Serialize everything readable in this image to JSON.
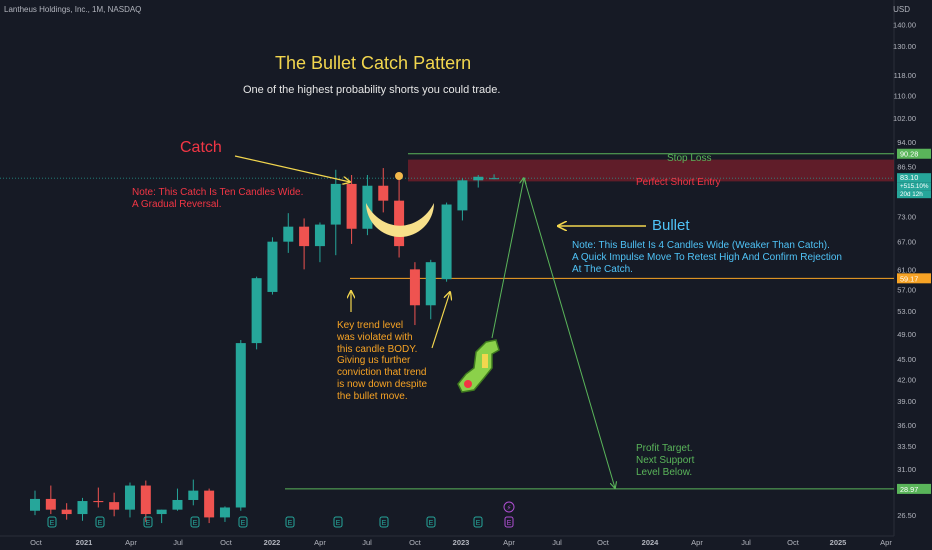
{
  "header": {
    "symbol": "Lantheus Holdings, Inc., 1M, NASDAQ",
    "currency": "USD"
  },
  "annotations": {
    "title": "The Bullet Catch Pattern",
    "subtitle": "One of the highest probability shorts you could trade.",
    "catch_label": "Catch",
    "catch_note": "Note: This Catch Is Ten Candles Wide.\nA Gradual Reversal.",
    "bullet_label": "Bullet",
    "bullet_note": "Note:  This Bullet Is 4 Candles Wide (Weaker Than Catch).\nA Quick Impulse Move To Retest High And Confirm Rejection\nAt The Catch.",
    "key_note": "Key trend level\nwas violated with\nthis candle BODY.\nGiving us further\nconviction that trend\nis now down despite\nthe bullet move.",
    "stop_loss": "Stop Loss",
    "short_entry": "Perfect Short Entry",
    "profit_target": "Profit Target.\nNext Support\nLevel Below."
  },
  "colors": {
    "background": "#161a25",
    "up": "#26a69a",
    "down": "#ef5350",
    "green_line": "#5ab55a",
    "orange_line": "#f7a325",
    "short_zone": "#7a1f2b",
    "catch_arc": "#f7e08a",
    "arrow_yellow": "#f2d64e",
    "axis_text": "#b2b5be"
  },
  "chart_data": {
    "type": "candlestick",
    "interval": "1M",
    "y_scale": "log",
    "ylim": [
      25.2,
      148
    ],
    "y_ticks": [
      26.5,
      29.0,
      31.0,
      33.5,
      36.0,
      39.0,
      42.0,
      45.0,
      49.0,
      53.0,
      57.0,
      61.0,
      67.0,
      73.0,
      80.0,
      86.5,
      94.0,
      102.0,
      110.0,
      118.0,
      130.0,
      140.0
    ],
    "x_ticks": [
      "Oct",
      "2021",
      "Apr",
      "Jul",
      "Oct",
      "2022",
      "Apr",
      "Jul",
      "Oct",
      "2023",
      "Apr",
      "Jul",
      "Oct",
      "2024",
      "Apr",
      "Jul",
      "Oct",
      "2025",
      "Apr"
    ],
    "x_tick_bold": [
      "2021",
      "2022",
      "2023",
      "2024",
      "2025"
    ],
    "candles": [
      {
        "month": "2020-11",
        "o": 26.9,
        "h": 28.8,
        "l": 26.5,
        "c": 28.0
      },
      {
        "month": "2020-12",
        "o": 28.0,
        "h": 29.3,
        "l": 26.6,
        "c": 27.0
      },
      {
        "month": "2021-01",
        "o": 27.0,
        "h": 27.6,
        "l": 26.1,
        "c": 26.6
      },
      {
        "month": "2021-02",
        "o": 26.6,
        "h": 28.1,
        "l": 26.0,
        "c": 27.8
      },
      {
        "month": "2021-03",
        "o": 27.8,
        "h": 29.1,
        "l": 27.2,
        "c": 27.7
      },
      {
        "month": "2021-04",
        "o": 27.7,
        "h": 28.6,
        "l": 26.4,
        "c": 27.0
      },
      {
        "month": "2021-05",
        "o": 27.0,
        "h": 29.6,
        "l": 26.3,
        "c": 29.3
      },
      {
        "month": "2021-06",
        "o": 29.3,
        "h": 29.8,
        "l": 25.9,
        "c": 26.6
      },
      {
        "month": "2021-07",
        "o": 26.6,
        "h": 27.0,
        "l": 25.8,
        "c": 27.0
      },
      {
        "month": "2021-08",
        "o": 27.0,
        "h": 29.0,
        "l": 26.9,
        "c": 27.9
      },
      {
        "month": "2021-09",
        "o": 27.9,
        "h": 29.9,
        "l": 27.4,
        "c": 28.8
      },
      {
        "month": "2021-10",
        "o": 28.8,
        "h": 29.0,
        "l": 25.8,
        "c": 26.3
      },
      {
        "month": "2021-11",
        "o": 26.3,
        "h": 27.3,
        "l": 25.9,
        "c": 27.2
      },
      {
        "month": "2021-12",
        "o": 27.2,
        "h": 48.0,
        "l": 26.9,
        "c": 47.5
      },
      {
        "month": "2022-01",
        "o": 47.5,
        "h": 59.5,
        "l": 46.5,
        "c": 59.2
      },
      {
        "month": "2022-02",
        "o": 56.5,
        "h": 68.0,
        "l": 56.0,
        "c": 67.0
      },
      {
        "month": "2022-03",
        "o": 67.0,
        "h": 73.8,
        "l": 64.5,
        "c": 70.5
      },
      {
        "month": "2022-04",
        "o": 70.5,
        "h": 72.5,
        "l": 61.0,
        "c": 66.0
      },
      {
        "month": "2022-05",
        "o": 66.0,
        "h": 71.5,
        "l": 62.5,
        "c": 71.0
      },
      {
        "month": "2022-06",
        "o": 71.0,
        "h": 85.5,
        "l": 64.0,
        "c": 81.5
      },
      {
        "month": "2022-07",
        "o": 81.5,
        "h": 84.0,
        "l": 66.5,
        "c": 70.0
      },
      {
        "month": "2022-08",
        "o": 70.0,
        "h": 84.0,
        "l": 68.5,
        "c": 81.0
      },
      {
        "month": "2022-09",
        "o": 81.0,
        "h": 86.0,
        "l": 74.0,
        "c": 77.0
      },
      {
        "month": "2022-10",
        "o": 77.0,
        "h": 83.0,
        "l": 63.5,
        "c": 66.0
      },
      {
        "month": "2022-11",
        "o": 61.0,
        "h": 62.5,
        "l": 50.5,
        "c": 54.0
      },
      {
        "month": "2022-12",
        "o": 54.0,
        "h": 63.0,
        "l": 51.5,
        "c": 62.5
      },
      {
        "month": "2023-01",
        "o": 59.0,
        "h": 76.5,
        "l": 58.5,
        "c": 76.0
      },
      {
        "month": "2023-02",
        "o": 74.5,
        "h": 83.0,
        "l": 72.0,
        "c": 82.5
      },
      {
        "month": "2023-03",
        "o": 82.5,
        "h": 84.0,
        "l": 80.5,
        "c": 83.5
      },
      {
        "month": "2023-04",
        "o": 83.0,
        "h": 84.2,
        "l": 82.8,
        "c": 83.1
      }
    ],
    "levels": {
      "stop_loss": 90.28,
      "key_trend": 59.17,
      "profit_target": 28.97,
      "short_zone": [
        82.2,
        88.5
      ]
    },
    "price_badges": [
      {
        "value": "90.28",
        "color": "#5ab55a"
      },
      {
        "value": "83.10",
        "color": "#26a69a"
      },
      {
        "value": "+515.10%",
        "color": "#26a69a"
      },
      {
        "value": "20d 12h",
        "color": "#26a69a"
      },
      {
        "value": "59.17",
        "color": "#f7a325"
      },
      {
        "value": "28.97",
        "color": "#5ab55a"
      }
    ],
    "events": [
      "E",
      "E",
      "E",
      "E",
      "E",
      "E",
      "E",
      "E",
      "E",
      "E"
    ],
    "events_special": [
      "⚡",
      "E"
    ]
  }
}
